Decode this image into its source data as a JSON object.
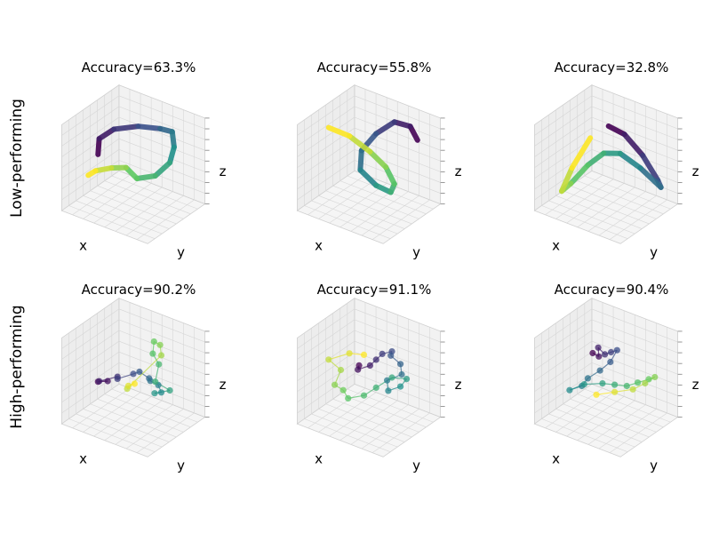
{
  "rows": [
    {
      "label": "Low-performing"
    },
    {
      "label": "High-performing"
    }
  ],
  "colormap": [
    "#440154",
    "#3b528b",
    "#21918c",
    "#5ec962",
    "#fde725"
  ],
  "chart_data": [
    {
      "type": "line3d",
      "row": 0,
      "col": 0,
      "title": "Accuracy=63.3%",
      "xlabel": "x",
      "ylabel": "y",
      "zlabel": "z",
      "style": "tube",
      "series": [
        {
          "points": [
            [
              -0.5,
              -0.7,
              0.4
            ],
            [
              -0.6,
              -0.5,
              0.7
            ],
            [
              -0.4,
              -0.2,
              0.9
            ],
            [
              0.0,
              0.2,
              0.95
            ],
            [
              0.4,
              0.5,
              0.9
            ],
            [
              0.6,
              0.7,
              0.8
            ],
            [
              0.65,
              0.7,
              0.4
            ],
            [
              0.6,
              0.6,
              0.0
            ],
            [
              0.4,
              0.3,
              -0.3
            ],
            [
              0.1,
              0.0,
              -0.35
            ],
            [
              0.0,
              -0.3,
              0.05
            ],
            [
              -0.2,
              -0.6,
              0.1
            ],
            [
              -0.5,
              -0.8,
              0.0
            ],
            [
              -0.7,
              -0.8,
              -0.2
            ]
          ]
        }
      ]
    },
    {
      "type": "line3d",
      "row": 0,
      "col": 1,
      "title": "Accuracy=55.8%",
      "xlabel": "x",
      "ylabel": "y",
      "zlabel": "z",
      "style": "tube",
      "series": [
        {
          "points": [
            [
              0.8,
              0.8,
              0.6
            ],
            [
              0.6,
              0.8,
              0.9
            ],
            [
              0.3,
              0.6,
              1.0
            ],
            [
              0.0,
              0.3,
              0.7
            ],
            [
              -0.2,
              0.0,
              0.3
            ],
            [
              -0.1,
              -0.2,
              -0.1
            ],
            [
              0.2,
              0.0,
              -0.5
            ],
            [
              0.4,
              0.3,
              -0.75
            ],
            [
              0.3,
              0.6,
              -0.7
            ],
            [
              0.0,
              0.7,
              -0.4
            ],
            [
              -0.3,
              0.5,
              0.0
            ],
            [
              -0.6,
              0.1,
              0.5
            ],
            [
              -0.9,
              -0.3,
              0.8
            ]
          ]
        }
      ]
    },
    {
      "type": "line3d",
      "row": 0,
      "col": 2,
      "title": "Accuracy=32.8%",
      "xlabel": "x",
      "ylabel": "y",
      "zlabel": "z",
      "style": "tube",
      "series": [
        {
          "points": [
            [
              0.0,
              0.1,
              1.0
            ],
            [
              0.3,
              0.3,
              0.8
            ],
            [
              0.6,
              0.6,
              0.2
            ],
            [
              0.85,
              0.85,
              -0.5
            ],
            [
              0.9,
              0.9,
              -0.7
            ],
            [
              0.6,
              0.5,
              -0.1
            ],
            [
              0.25,
              0.2,
              0.3
            ],
            [
              0.0,
              -0.1,
              0.35
            ],
            [
              -0.3,
              -0.3,
              0.0
            ],
            [
              -0.6,
              -0.55,
              -0.5
            ],
            [
              -0.75,
              -0.7,
              -0.7
            ],
            [
              -0.6,
              -0.5,
              -0.1
            ],
            [
              -0.3,
              -0.2,
              0.7
            ]
          ]
        }
      ]
    },
    {
      "type": "scatter3d",
      "row": 1,
      "col": 0,
      "title": "Accuracy=90.2%",
      "xlabel": "x",
      "ylabel": "y",
      "zlabel": "z",
      "style": "markers",
      "series": [
        {
          "points": [
            [
              -0.7,
              -0.4,
              -0.2
            ],
            [
              -0.5,
              -0.3,
              -0.15
            ],
            [
              -0.6,
              -0.5,
              -0.1
            ],
            [
              -0.3,
              -0.2,
              0.0
            ],
            [
              -0.2,
              -0.35,
              0.05
            ],
            [
              0.0,
              0.0,
              0.1
            ],
            [
              0.1,
              0.1,
              0.15
            ],
            [
              0.3,
              0.2,
              0.0
            ],
            [
              0.2,
              0.4,
              -0.2
            ],
            [
              0.35,
              0.5,
              -0.3
            ],
            [
              0.5,
              0.4,
              -0.4
            ],
            [
              0.45,
              0.2,
              -0.35
            ],
            [
              0.6,
              0.6,
              -0.4
            ],
            [
              0.4,
              0.3,
              -0.1
            ],
            [
              0.3,
              0.6,
              0.2
            ],
            [
              0.2,
              0.5,
              0.5
            ],
            [
              0.1,
              0.7,
              0.7
            ],
            [
              0.2,
              0.8,
              0.6
            ],
            [
              0.3,
              0.7,
              0.4
            ],
            [
              -0.1,
              -0.1,
              -0.3
            ],
            [
              -0.2,
              0.1,
              -0.35
            ],
            [
              -0.1,
              0.2,
              -0.3
            ]
          ]
        }
      ]
    },
    {
      "type": "scatter3d",
      "row": 1,
      "col": 1,
      "title": "Accuracy=91.1%",
      "xlabel": "x",
      "ylabel": "y",
      "zlabel": "z",
      "style": "markers",
      "series": [
        {
          "points": [
            [
              -0.2,
              -0.1,
              0.3
            ],
            [
              -0.3,
              0.0,
              0.1
            ],
            [
              -0.1,
              0.2,
              0.2
            ],
            [
              0.0,
              0.3,
              0.35
            ],
            [
              0.1,
              0.4,
              0.5
            ],
            [
              0.3,
              0.5,
              0.6
            ],
            [
              0.2,
              0.6,
              0.4
            ],
            [
              0.4,
              0.7,
              0.2
            ],
            [
              0.5,
              0.6,
              0.0
            ],
            [
              0.3,
              0.3,
              -0.1
            ],
            [
              0.4,
              0.2,
              -0.3
            ],
            [
              0.6,
              0.4,
              -0.2
            ],
            [
              0.7,
              0.5,
              0.0
            ],
            [
              0.5,
              0.2,
              0.1
            ],
            [
              0.2,
              0.0,
              -0.2
            ],
            [
              0.0,
              -0.2,
              -0.4
            ],
            [
              -0.3,
              -0.4,
              -0.5
            ],
            [
              -0.5,
              -0.3,
              -0.4
            ],
            [
              -0.6,
              -0.5,
              -0.2
            ],
            [
              -0.5,
              -0.4,
              0.2
            ],
            [
              -0.7,
              -0.6,
              0.5
            ],
            [
              -0.4,
              -0.2,
              0.6
            ],
            [
              -0.2,
              0.1,
              0.5
            ]
          ]
        }
      ]
    },
    {
      "type": "scatter3d",
      "row": 1,
      "col": 2,
      "title": "Accuracy=90.4%",
      "xlabel": "x",
      "ylabel": "y",
      "zlabel": "z",
      "style": "markers",
      "series": [
        {
          "points": [
            [
              -0.3,
              -0.1,
              0.6
            ],
            [
              -0.2,
              0.0,
              0.5
            ],
            [
              -0.25,
              0.05,
              0.7
            ],
            [
              -0.1,
              0.1,
              0.55
            ],
            [
              0.0,
              0.2,
              0.6
            ],
            [
              0.1,
              0.3,
              0.65
            ],
            [
              0.05,
              0.1,
              0.4
            ],
            [
              -0.1,
              -0.1,
              0.2
            ],
            [
              -0.3,
              -0.3,
              0.0
            ],
            [
              -0.4,
              -0.4,
              -0.2
            ],
            [
              -0.6,
              -0.6,
              -0.3
            ],
            [
              -0.4,
              -0.3,
              -0.2
            ],
            [
              -0.1,
              0.0,
              -0.2
            ],
            [
              0.1,
              0.2,
              -0.25
            ],
            [
              0.3,
              0.4,
              -0.3
            ],
            [
              0.5,
              0.55,
              -0.2
            ],
            [
              0.7,
              0.7,
              -0.1
            ],
            [
              0.8,
              0.8,
              -0.05
            ],
            [
              0.6,
              0.7,
              -0.25
            ],
            [
              0.4,
              0.5,
              -0.4
            ],
            [
              0.1,
              0.2,
              -0.45
            ],
            [
              -0.2,
              -0.1,
              -0.5
            ]
          ]
        }
      ]
    }
  ]
}
